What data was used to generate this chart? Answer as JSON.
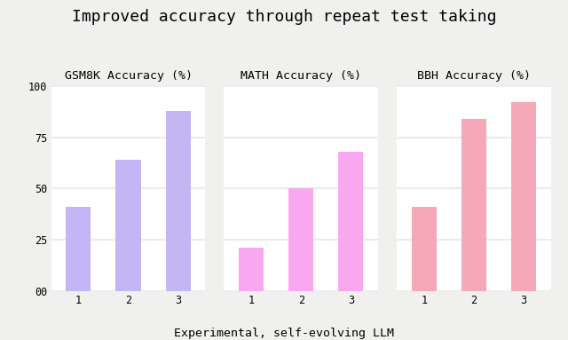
{
  "title": "Improved accuracy through repeat test taking",
  "xlabel": "Experimental, self-evolving LLM",
  "subtitles": [
    "GSM8K Accuracy (%)",
    "MATH Accuracy (%)",
    "BBH Accuracy (%)"
  ],
  "x_ticks": [
    1,
    2,
    3
  ],
  "y_ticks": [
    0,
    25,
    50,
    75,
    100
  ],
  "y_tick_labels": [
    "00",
    "25",
    "50",
    "75",
    "100"
  ],
  "ylim": [
    0,
    100
  ],
  "gsm8k_values": [
    41,
    64,
    88
  ],
  "math_values": [
    21,
    50,
    68
  ],
  "bbh_values": [
    41,
    84,
    92
  ],
  "gsm8k_color": "#c4b5f5",
  "math_color": "#f9a8f0",
  "bbh_color": "#f5a8b8",
  "background_color": "#f0f0ee",
  "panel_color": "#ffffff",
  "grid_color": "#e8e8e8",
  "title_fontsize": 13,
  "subtitle_fontsize": 9.5,
  "tick_fontsize": 8.5,
  "xlabel_fontsize": 9.5,
  "bar_width": 0.5
}
